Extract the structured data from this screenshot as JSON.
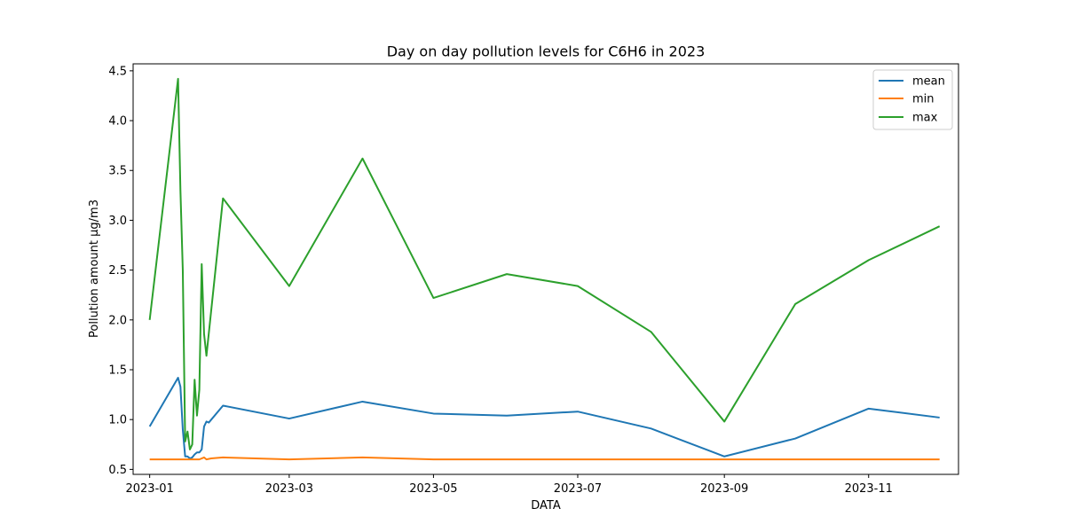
{
  "chart_data": {
    "type": "line",
    "title": "Day on day pollution levels for C6H6 in 2023",
    "xlabel": "DATA",
    "ylabel": "Pollution amount µg/m3",
    "xlim": [
      "2022-12-25",
      "2023-12-09"
    ],
    "ylim": [
      0.45,
      4.57
    ],
    "x_ticks": [
      "2023-01",
      "2023-03",
      "2023-05",
      "2023-07",
      "2023-09",
      "2023-11"
    ],
    "y_ticks": [
      0.5,
      1.0,
      1.5,
      2.0,
      2.5,
      3.0,
      3.5,
      4.0,
      4.5
    ],
    "y_tick_labels": [
      "0.5",
      "1.0",
      "1.5",
      "2.0",
      "2.5",
      "3.0",
      "3.5",
      "4.0",
      "4.5"
    ],
    "legend_position": "top-right",
    "grid": false,
    "series": [
      {
        "name": "mean",
        "color": "#1f77b4",
        "points": [
          [
            "2023-01-01",
            0.93
          ],
          [
            "2023-01-13",
            1.42
          ],
          [
            "2023-01-14",
            1.33
          ],
          [
            "2023-01-15",
            0.9
          ],
          [
            "2023-01-16",
            0.63
          ],
          [
            "2023-01-17",
            0.63
          ],
          [
            "2023-01-18",
            0.61
          ],
          [
            "2023-01-19",
            0.62
          ],
          [
            "2023-01-20",
            0.65
          ],
          [
            "2023-01-21",
            0.67
          ],
          [
            "2023-01-22",
            0.67
          ],
          [
            "2023-01-23",
            0.7
          ],
          [
            "2023-01-24",
            0.93
          ],
          [
            "2023-01-25",
            0.98
          ],
          [
            "2023-01-26",
            0.97
          ],
          [
            "2023-02-01",
            1.14
          ],
          [
            "2023-03-01",
            1.01
          ],
          [
            "2023-04-01",
            1.18
          ],
          [
            "2023-05-01",
            1.06
          ],
          [
            "2023-06-01",
            1.04
          ],
          [
            "2023-07-01",
            1.08
          ],
          [
            "2023-08-01",
            0.91
          ],
          [
            "2023-09-01",
            0.63
          ],
          [
            "2023-10-01",
            0.81
          ],
          [
            "2023-11-01",
            1.11
          ],
          [
            "2023-12-01",
            1.02
          ]
        ]
      },
      {
        "name": "min",
        "color": "#ff7f0e",
        "points": [
          [
            "2023-01-01",
            0.6
          ],
          [
            "2023-01-13",
            0.6
          ],
          [
            "2023-01-16",
            0.6
          ],
          [
            "2023-01-19",
            0.6
          ],
          [
            "2023-01-22",
            0.6
          ],
          [
            "2023-01-24",
            0.62
          ],
          [
            "2023-01-25",
            0.6
          ],
          [
            "2023-01-27",
            0.61
          ],
          [
            "2023-02-01",
            0.62
          ],
          [
            "2023-03-01",
            0.6
          ],
          [
            "2023-04-01",
            0.62
          ],
          [
            "2023-05-01",
            0.6
          ],
          [
            "2023-06-01",
            0.6
          ],
          [
            "2023-07-01",
            0.6
          ],
          [
            "2023-08-01",
            0.6
          ],
          [
            "2023-09-01",
            0.6
          ],
          [
            "2023-10-01",
            0.6
          ],
          [
            "2023-11-01",
            0.6
          ],
          [
            "2023-12-01",
            0.6
          ]
        ]
      },
      {
        "name": "max",
        "color": "#2ca02c",
        "points": [
          [
            "2023-01-01",
            2.0
          ],
          [
            "2023-01-13",
            4.42
          ],
          [
            "2023-01-14",
            3.3
          ],
          [
            "2023-01-15",
            2.5
          ],
          [
            "2023-01-16",
            0.78
          ],
          [
            "2023-01-17",
            0.88
          ],
          [
            "2023-01-18",
            0.7
          ],
          [
            "2023-01-19",
            0.75
          ],
          [
            "2023-01-20",
            1.4
          ],
          [
            "2023-01-21",
            1.04
          ],
          [
            "2023-01-22",
            1.3
          ],
          [
            "2023-01-23",
            2.56
          ],
          [
            "2023-01-24",
            1.86
          ],
          [
            "2023-01-25",
            1.64
          ],
          [
            "2023-02-01",
            3.22
          ],
          [
            "2023-03-01",
            2.34
          ],
          [
            "2023-04-01",
            3.62
          ],
          [
            "2023-05-01",
            2.22
          ],
          [
            "2023-06-01",
            2.46
          ],
          [
            "2023-07-01",
            2.34
          ],
          [
            "2023-08-01",
            1.88
          ],
          [
            "2023-09-01",
            0.98
          ],
          [
            "2023-10-01",
            2.16
          ],
          [
            "2023-11-01",
            2.6
          ],
          [
            "2023-12-01",
            2.94
          ]
        ]
      }
    ]
  }
}
